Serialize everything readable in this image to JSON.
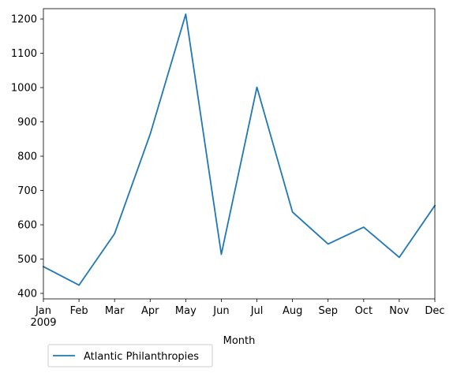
{
  "chart_data": {
    "type": "line",
    "title": "",
    "xlabel": "Month",
    "ylabel": "",
    "categories": [
      "Jan",
      "Feb",
      "Mar",
      "Apr",
      "May",
      "Jun",
      "Jul",
      "Aug",
      "Sep",
      "Oct",
      "Nov",
      "Dec"
    ],
    "year_label": "2009",
    "yticks": [
      400,
      500,
      600,
      700,
      800,
      900,
      1000,
      1100,
      1200
    ],
    "ylim": [
      384,
      1230
    ],
    "series": [
      {
        "name": "Atlantic Philanthropies",
        "color": "#1f77b4",
        "values": [
          478,
          424,
          574,
          864,
          1214,
          514,
          1001,
          637,
          544,
          593,
          505,
          656
        ]
      }
    ],
    "grid": false,
    "legend": {
      "placement": "bottom-left, outside axes"
    }
  }
}
